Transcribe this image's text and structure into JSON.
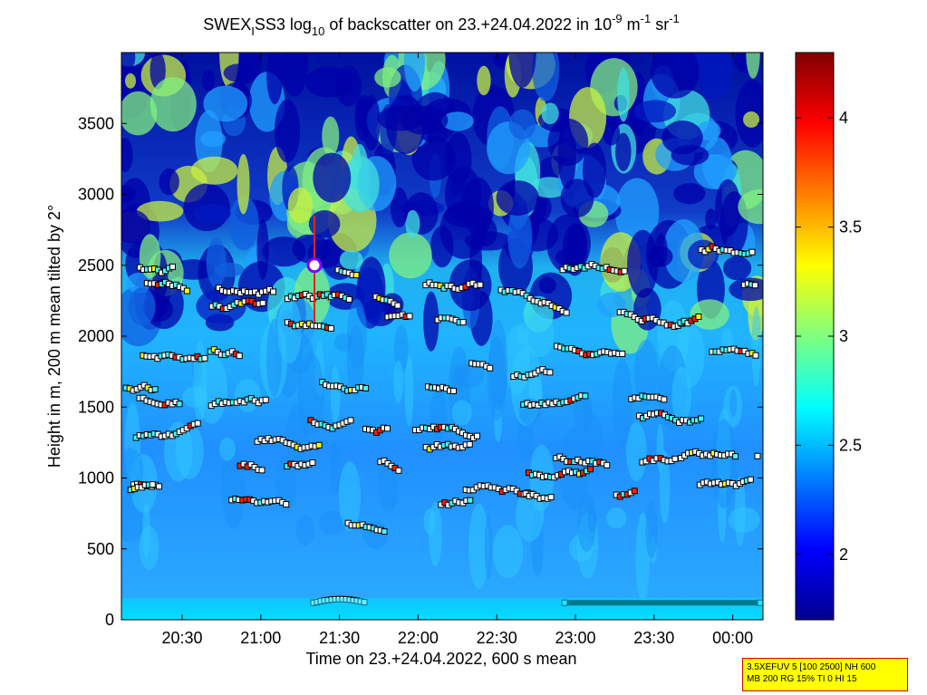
{
  "chart_data": {
    "type": "heatmap",
    "title_parts": {
      "a": "SWEX",
      "a_sub": "I",
      "b": "SS3 log",
      "b_sub": "10",
      "c": " of backscatter on 23.+24.04.2022 in 10",
      "c_sup": "-9",
      "d": " m",
      "d_sup": "-1",
      "e": " sr",
      "e_sup": "-1"
    },
    "xlabel": "Time on 23.+24.04.2022, 600 s mean",
    "ylabel": "Height in m, 200 m mean tilted by 2°",
    "x_ticks": [
      "20:30",
      "21:00",
      "21:30",
      "22:00",
      "22:30",
      "23:00",
      "23:30",
      "00:00"
    ],
    "y_ticks": [
      "0",
      "500",
      "1000",
      "1500",
      "2000",
      "2500",
      "3000",
      "3500"
    ],
    "y_tick_values": [
      0,
      500,
      1000,
      1500,
      2000,
      2500,
      3000,
      3500
    ],
    "ylim": [
      0,
      4000
    ],
    "colorbar": {
      "ticks": [
        "2",
        "2.5",
        "3",
        "3.5",
        "4"
      ],
      "tick_values": [
        2,
        2.5,
        3,
        3.5,
        4
      ],
      "range": [
        1.7,
        4.3
      ],
      "colormap": "jet"
    },
    "layers": [
      {
        "name": "cloud base / layer detections",
        "height_m": [
          2450,
          2300,
          2000,
          1700,
          1500,
          1200,
          1050,
          850
        ]
      },
      {
        "name": "surface layer",
        "height_m": [
          120
        ]
      }
    ]
  },
  "param_box": {
    "line1": "3.5XEFUV 5 [100 2500] NH 600",
    "line2": "MB 200 RG 15% TI 0 HI 15"
  }
}
